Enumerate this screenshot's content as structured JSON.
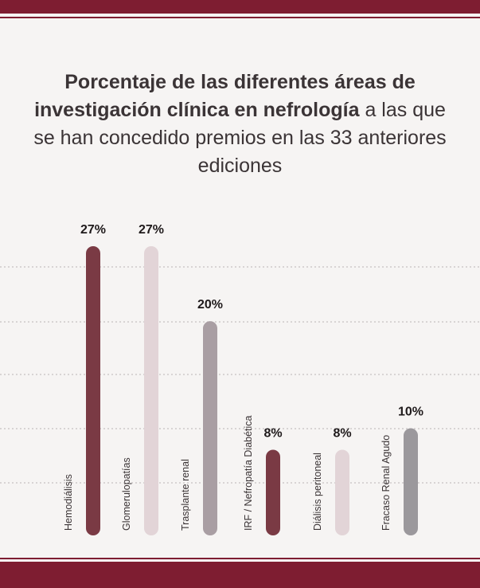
{
  "title": {
    "bold": "Porcentaje de las diferentes áreas de investigación clínica en nefrología",
    "rest": " a las que se han concedido premios en las 33 anteriores ediciones"
  },
  "colors": {
    "brand": "#7e1d31",
    "dark_red": "#7a3a44",
    "pink": "#e2d4d7",
    "mauve": "#a99ea3",
    "gray": "#9b989c",
    "grid": "#b9b3b5",
    "text": "#3b3436",
    "background": "#f6f4f3"
  },
  "chart_data": {
    "type": "bar",
    "orientation": "vertical",
    "title": "Porcentaje de las diferentes áreas de investigación clínica en nefrología a las que se han concedido premios en las 33 anteriores ediciones",
    "categories": [
      "Hemodiálisis",
      "Glomerulopatías",
      "Trasplante renal",
      "IRF / Nefropatía Diabética",
      "Diálisis peritoneal",
      "Fracaso Renal Agudo"
    ],
    "values": [
      27,
      27,
      20,
      8,
      8,
      10
    ],
    "data_labels": [
      "27%",
      "27%",
      "20%",
      "8%",
      "8%",
      "10%"
    ],
    "bar_colors": [
      "#7a3a44",
      "#e2d4d7",
      "#a99ea3",
      "#7a3a44",
      "#e2d4d7",
      "#9b989c"
    ],
    "unit": "%",
    "ylim": [
      0,
      27
    ],
    "grid": true,
    "grid_style": "dotted",
    "legend": "none"
  }
}
